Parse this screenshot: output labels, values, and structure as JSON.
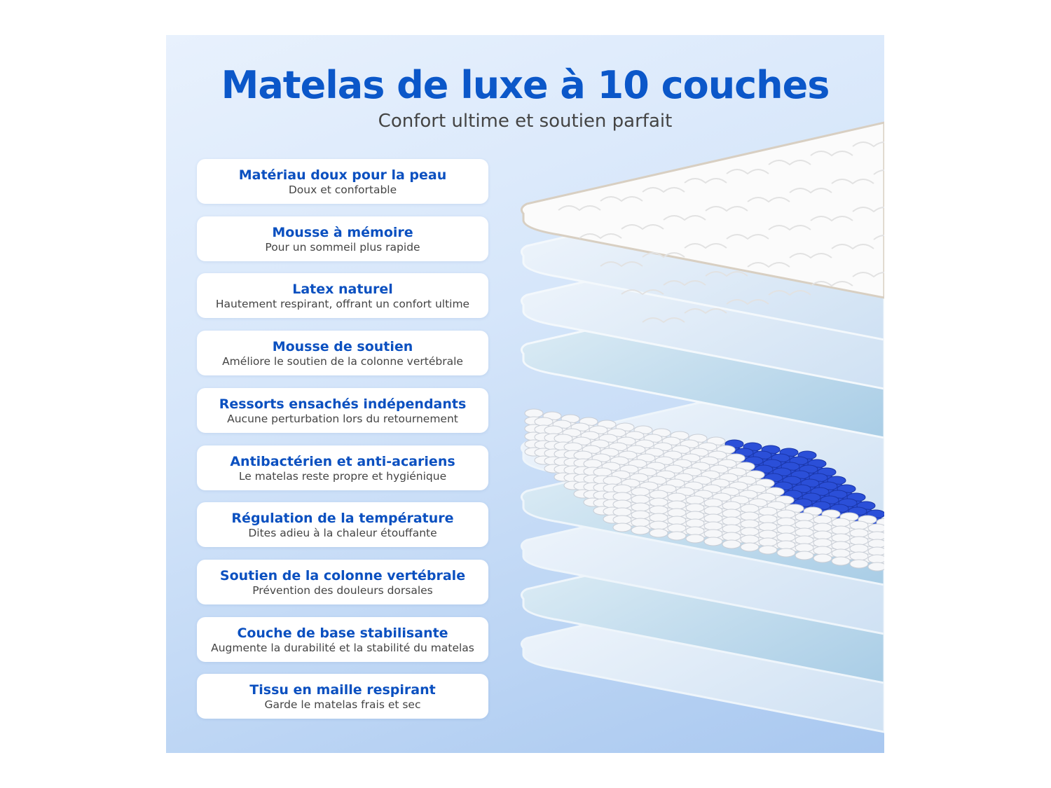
{
  "header": {
    "title": "Matelas de luxe à 10 couches",
    "subtitle": "Confort ultime et soutien parfait"
  },
  "layers": [
    {
      "title": "Matériau doux pour la peau",
      "desc": "Doux et confortable"
    },
    {
      "title": "Mousse à mémoire",
      "desc": "Pour un sommeil plus rapide"
    },
    {
      "title": "Latex naturel",
      "desc": "Hautement respirant, offrant un confort ultime"
    },
    {
      "title": "Mousse de soutien",
      "desc": "Améliore le soutien de la colonne vertébrale"
    },
    {
      "title": "Ressorts ensachés indépendants",
      "desc": "Aucune perturbation lors du retournement"
    },
    {
      "title": "Antibactérien et anti-acariens",
      "desc": "Le matelas reste propre et hygiénique"
    },
    {
      "title": "Régulation de la température",
      "desc": "Dites adieu à la chaleur étouffante"
    },
    {
      "title": "Soutien de la colonne vertébrale",
      "desc": "Prévention des douleurs dorsales"
    },
    {
      "title": "Couche de base stabilisante",
      "desc": "Augmente la durabilité et la stabilité du matelas"
    },
    {
      "title": "Tissu en maille respirant",
      "desc": "Garde le matelas frais et sec"
    }
  ],
  "colors": {
    "title": "#0b57c9",
    "card_title": "#0b50c0",
    "spring_blue": "#2b4fd8",
    "background": "#d6e6fa"
  }
}
